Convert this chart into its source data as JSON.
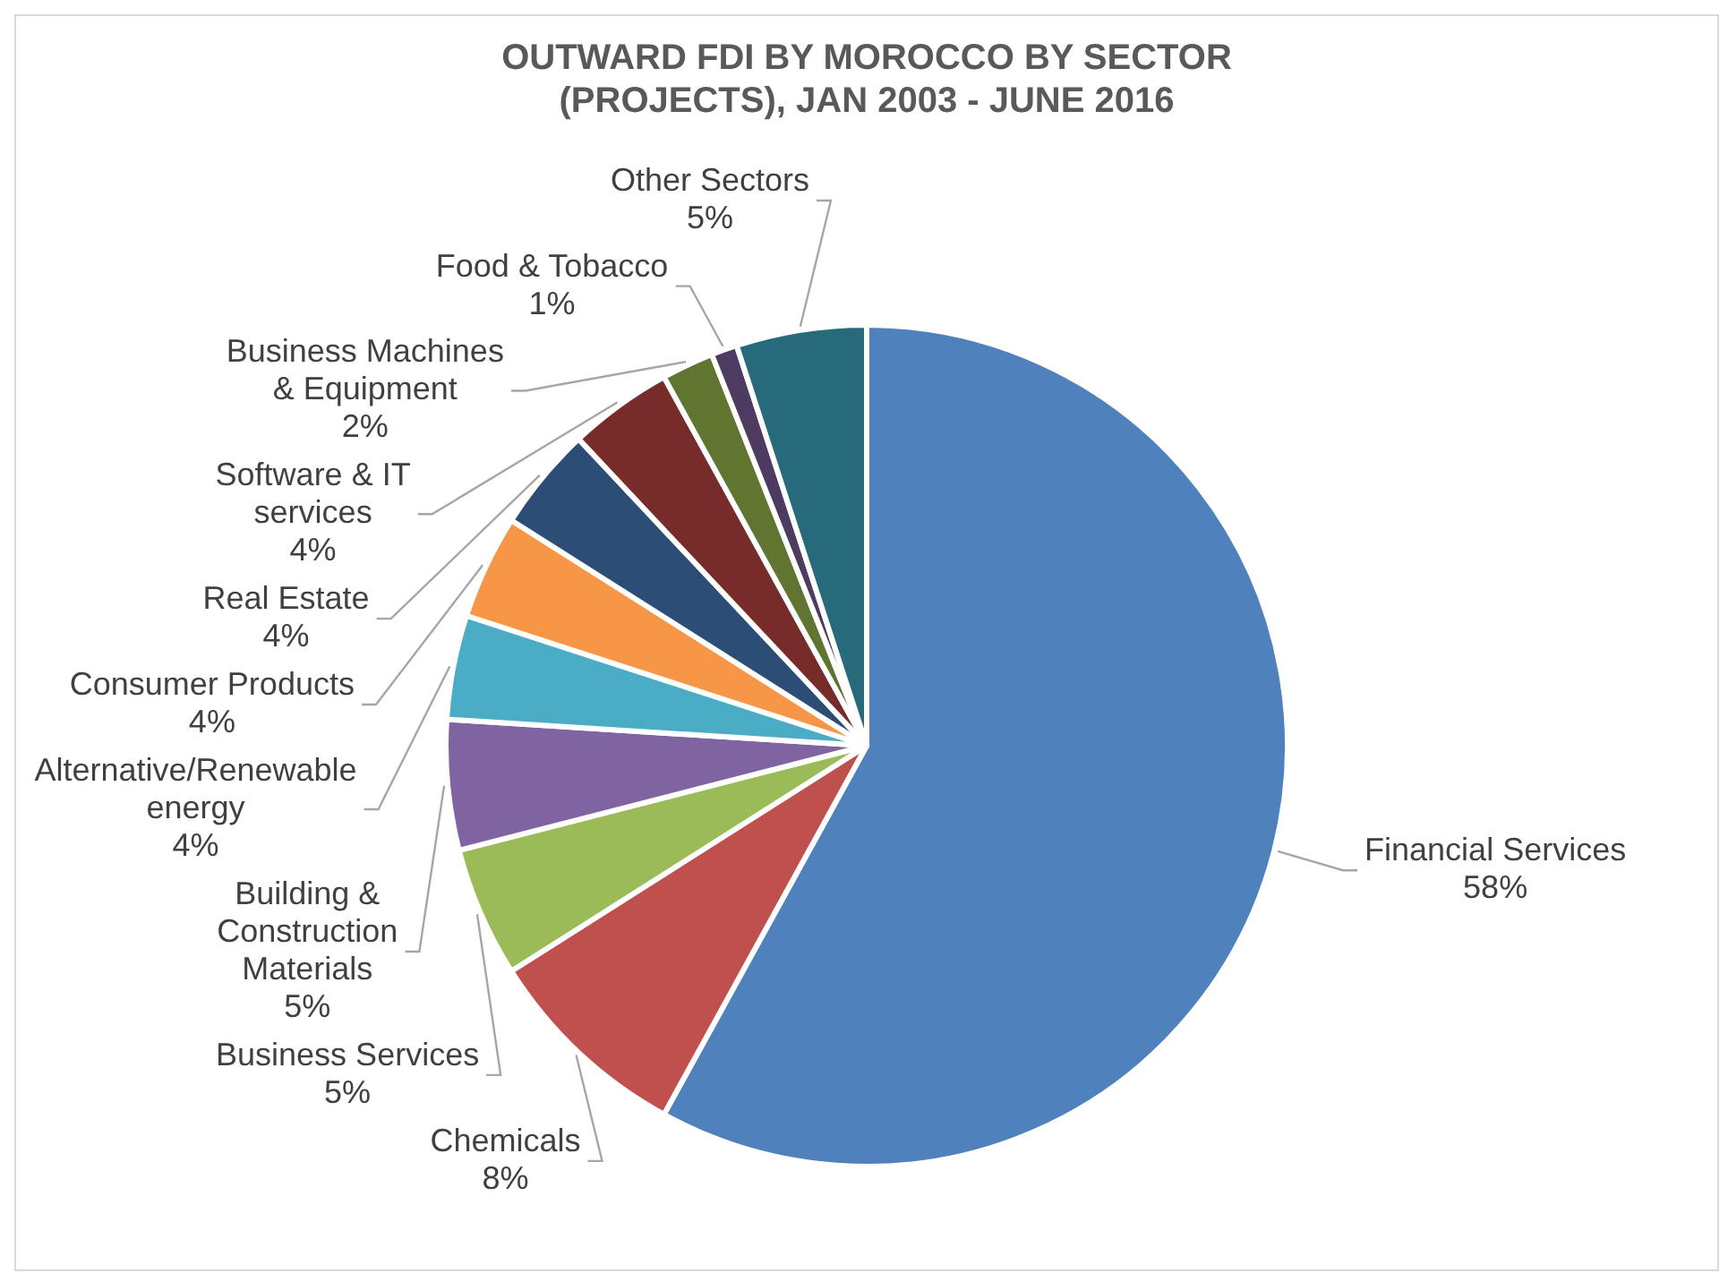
{
  "chart_data": {
    "type": "pie",
    "title": "OUTWARD FDI BY MOROCCO BY SECTOR (PROJECTS), JAN 2003 - JUNE 2016",
    "categories": [
      "Financial Services",
      "Chemicals",
      "Business Services",
      "Building & Construction Materials",
      "Alternative/Renewable energy",
      "Consumer Products",
      "Real Estate",
      "Software & IT services",
      "Business Machines & Equipment",
      "Food & Tobacco",
      "Other Sectors"
    ],
    "values": [
      58,
      8,
      5,
      5,
      4,
      4,
      4,
      4,
      2,
      1,
      5
    ],
    "value_labels": [
      "58%",
      "8%",
      "5%",
      "5%",
      "4%",
      "4%",
      "4%",
      "4%",
      "2%",
      "1%",
      "5%"
    ],
    "colors": [
      "#4f81bd",
      "#c0504d",
      "#9bbb59",
      "#8064a2",
      "#4bacc6",
      "#f79646",
      "#2c4d75",
      "#772c2a",
      "#5f7530",
      "#4d3b62",
      "#276a7c"
    ],
    "legend": false
  }
}
